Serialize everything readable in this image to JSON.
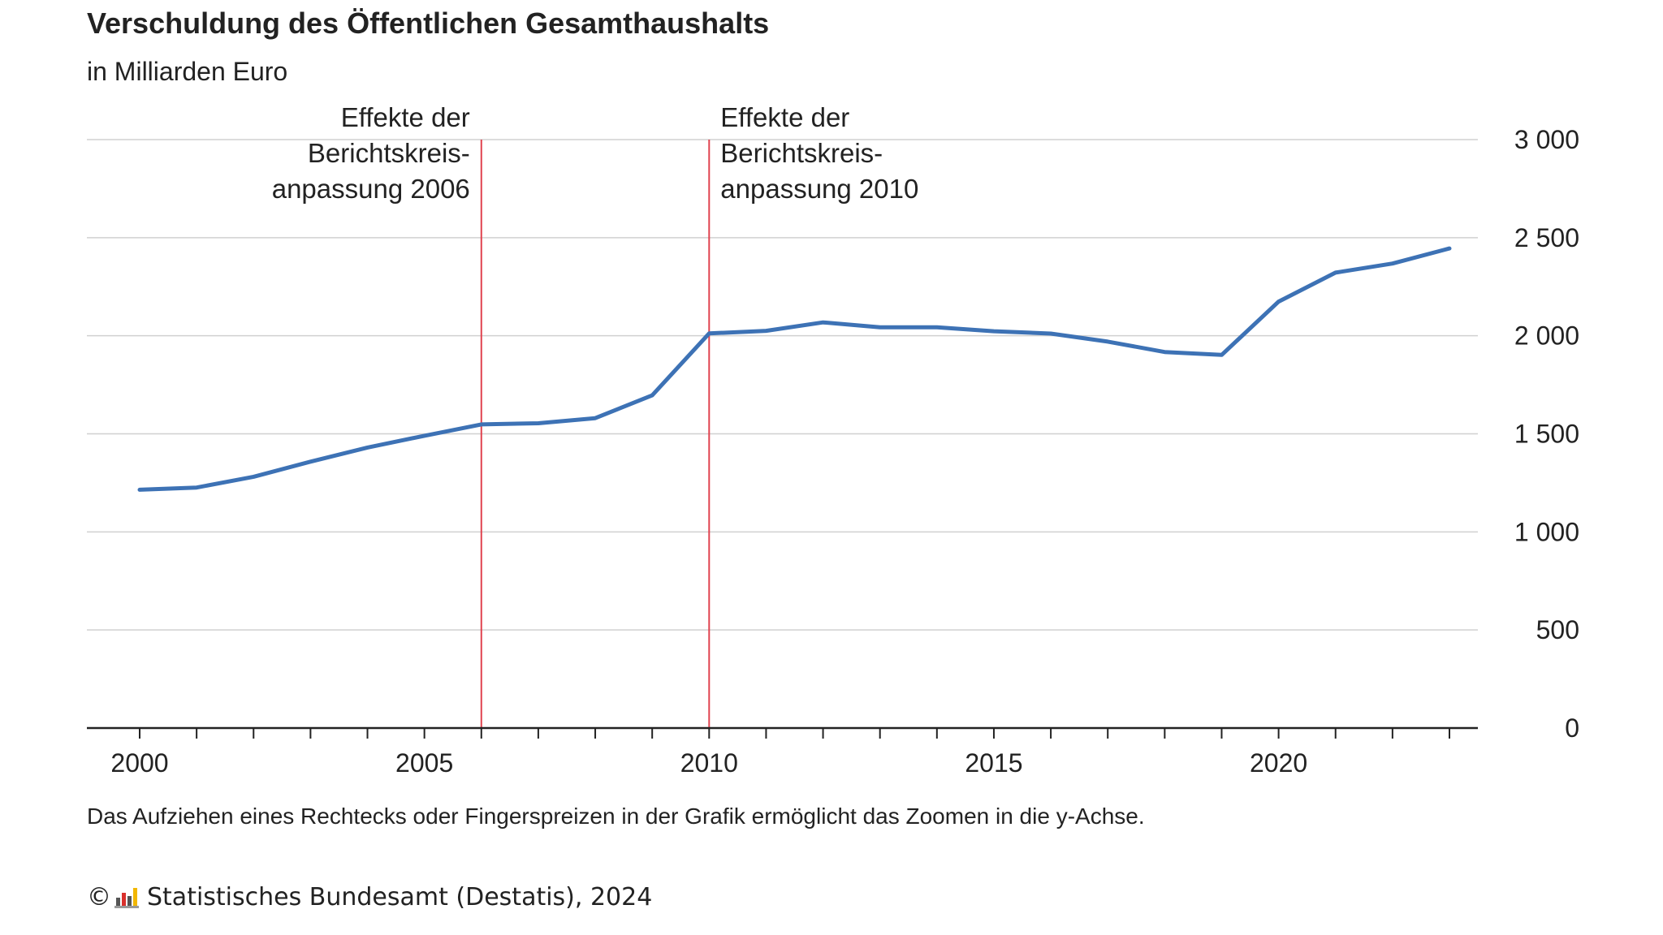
{
  "title": "Verschuldung des Öffentlichen Gesamthaushalts",
  "subtitle": "in Milliarden Euro",
  "note": "Das Aufziehen eines Rechtecks oder Fingerspreizen in der Grafik ermöglicht das Zoomen in die y-Achse.",
  "footer": {
    "copyright_symbol": "©",
    "text": "Statistisches Bundesamt (Destatis), 2024"
  },
  "colors": {
    "line": "#3d72b5",
    "marker_line": "#e0434f",
    "grid": "#d0d0d0",
    "axis": "#222222"
  },
  "chart_data": {
    "type": "line",
    "title": "Verschuldung des Öffentlichen Gesamthaushalts",
    "subtitle": "in Milliarden Euro",
    "x": [
      2000,
      2001,
      2002,
      2003,
      2004,
      2005,
      2006,
      2007,
      2008,
      2009,
      2010,
      2011,
      2012,
      2013,
      2014,
      2015,
      2016,
      2017,
      2018,
      2019,
      2020,
      2021,
      2022,
      2023
    ],
    "series": [
      {
        "name": "",
        "values": [
          1215,
          1226,
          1281,
          1358,
          1430,
          1490,
          1548,
          1554,
          1580,
          1696,
          2012,
          2025,
          2068,
          2043,
          2043,
          2023,
          2011,
          1970,
          1917,
          1902,
          2174,
          2322,
          2368,
          2445
        ]
      }
    ],
    "xlim": [
      2000,
      2023
    ],
    "xticks": [
      2000,
      2005,
      2010,
      2015,
      2020
    ],
    "ylim": [
      0,
      3000
    ],
    "yticks": [
      0,
      500,
      1000,
      1500,
      2000,
      2500,
      3000
    ],
    "ytick_labels": [
      "0",
      "500",
      "1 000",
      "1 500",
      "2 000",
      "2 500",
      "3 000"
    ],
    "y_axis_side": "right",
    "grid": true,
    "legend": "none",
    "annotations": [
      {
        "x": 2006,
        "lines": [
          "Effekte der",
          "Berichtskreis-",
          "anpassung 2006"
        ],
        "align": "right"
      },
      {
        "x": 2010,
        "lines": [
          "Effekte der",
          "Berichtskreis-",
          "anpassung 2010"
        ],
        "align": "left"
      }
    ]
  }
}
